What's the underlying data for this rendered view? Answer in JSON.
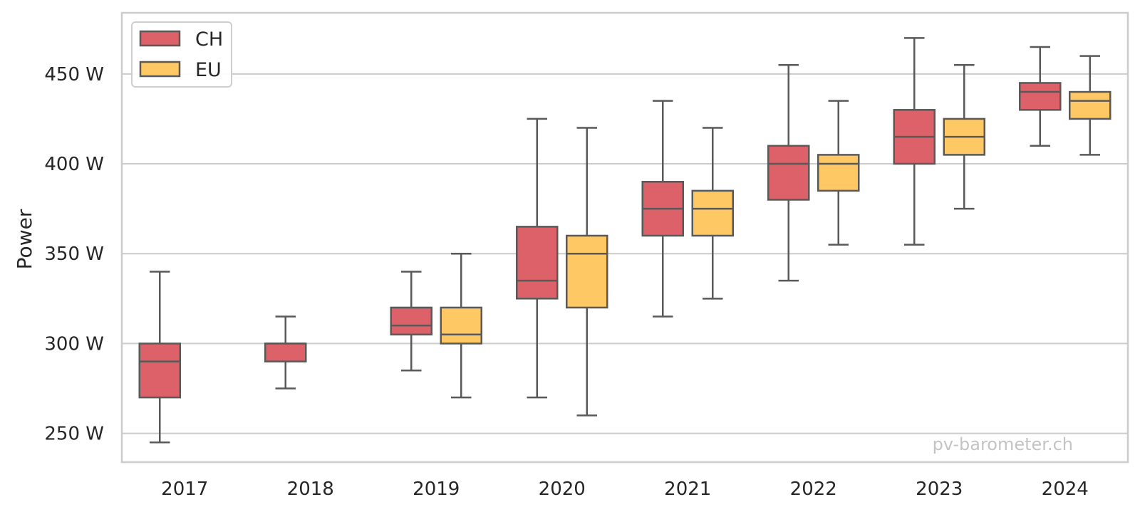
{
  "chart_data": {
    "type": "box",
    "title": "",
    "xlabel": "",
    "ylabel": "Power",
    "unit_suffix": " W",
    "ylim": [
      234,
      484
    ],
    "yticks": [
      250,
      300,
      350,
      400,
      450
    ],
    "ytick_labels": [
      "250 W",
      "300 W",
      "350 W",
      "400 W",
      "450 W"
    ],
    "grid": "horizontal",
    "legend_position": "top-left",
    "categories": [
      "2017",
      "2018",
      "2019",
      "2020",
      "2021",
      "2022",
      "2023",
      "2024"
    ],
    "series": [
      {
        "name": "CH",
        "color": "#dc6168",
        "boxes": [
          {
            "whisker_low": 245,
            "q1": 270,
            "median": 290,
            "q3": 300,
            "whisker_high": 340
          },
          {
            "whisker_low": 275,
            "q1": 290,
            "median": 300,
            "q3": 300,
            "whisker_high": 315
          },
          {
            "whisker_low": 285,
            "q1": 305,
            "median": 310,
            "q3": 320,
            "whisker_high": 340
          },
          {
            "whisker_low": 270,
            "q1": 325,
            "median": 335,
            "q3": 365,
            "whisker_high": 425
          },
          {
            "whisker_low": 315,
            "q1": 360,
            "median": 375,
            "q3": 390,
            "whisker_high": 435
          },
          {
            "whisker_low": 335,
            "q1": 380,
            "median": 400,
            "q3": 410,
            "whisker_high": 455
          },
          {
            "whisker_low": 355,
            "q1": 400,
            "median": 415,
            "q3": 430,
            "whisker_high": 470
          },
          {
            "whisker_low": 410,
            "q1": 430,
            "median": 440,
            "q3": 445,
            "whisker_high": 465
          }
        ]
      },
      {
        "name": "EU",
        "color": "#fec865",
        "boxes": [
          null,
          null,
          {
            "whisker_low": 270,
            "q1": 300,
            "median": 305,
            "q3": 320,
            "whisker_high": 350
          },
          {
            "whisker_low": 260,
            "q1": 320,
            "median": 350,
            "q3": 360,
            "whisker_high": 420
          },
          {
            "whisker_low": 325,
            "q1": 360,
            "median": 375,
            "q3": 385,
            "whisker_high": 420
          },
          {
            "whisker_low": 355,
            "q1": 385,
            "median": 400,
            "q3": 405,
            "whisker_high": 435
          },
          {
            "whisker_low": 375,
            "q1": 405,
            "median": 415,
            "q3": 425,
            "whisker_high": 455
          },
          {
            "whisker_low": 405,
            "q1": 425,
            "median": 435,
            "q3": 440,
            "whisker_high": 460
          }
        ]
      }
    ],
    "watermark": "pv-barometer.ch"
  }
}
